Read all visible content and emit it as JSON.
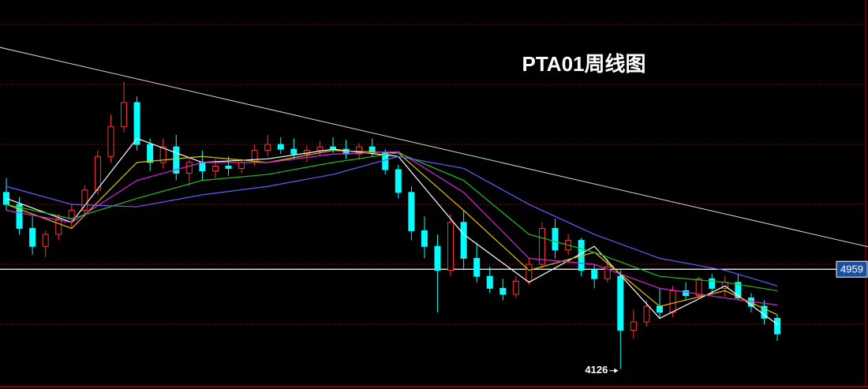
{
  "chart_data": {
    "type": "candlestick",
    "title": "PTA01周线图",
    "ylim": [
      3960,
      7205
    ],
    "gridlines": [
      4500,
      5000,
      5500,
      6000,
      6500,
      7000
    ],
    "up_color": "#ff3232",
    "down_color": "#00ffff",
    "open": [
      5600,
      5500,
      5300,
      5150,
      5250,
      5380,
      5450,
      5620,
      5900,
      6150,
      6350,
      6000,
      5850,
      5980,
      5760,
      5850,
      5780,
      5820,
      5800,
      5850,
      5950,
      6000,
      5960,
      5920,
      5950,
      5980,
      5960,
      5920,
      5980,
      5930,
      5790,
      5600,
      5280,
      5150,
      4950,
      5350,
      5050,
      4900,
      4800,
      4750,
      4860,
      5000,
      5300,
      5120,
      5200,
      4950,
      4880,
      4900,
      4450,
      4520,
      4650,
      4600,
      4780,
      4740,
      4880,
      4800,
      4850,
      4720,
      4650,
      4550
    ],
    "high": [
      5720,
      5560,
      5400,
      5280,
      5420,
      5500,
      5660,
      5950,
      6250,
      6520,
      6400,
      6050,
      6050,
      6080,
      5900,
      5950,
      5880,
      5900,
      5880,
      6000,
      6080,
      6060,
      6050,
      5990,
      6030,
      6060,
      6040,
      6010,
      6050,
      5960,
      5830,
      5650,
      5400,
      5250,
      5420,
      5450,
      5180,
      4980,
      4880,
      4900,
      5050,
      5350,
      5380,
      5250,
      5220,
      5000,
      5050,
      4950,
      4620,
      4700,
      4800,
      4820,
      4850,
      4900,
      4920,
      4900,
      4920,
      4760,
      4700,
      4580
    ],
    "low": [
      5450,
      5250,
      5080,
      5060,
      5200,
      5300,
      5400,
      5580,
      5850,
      6100,
      5950,
      5780,
      5800,
      5700,
      5650,
      5700,
      5720,
      5740,
      5760,
      5820,
      5900,
      5920,
      5880,
      5850,
      5900,
      5930,
      5880,
      5870,
      5900,
      5750,
      5550,
      5200,
      5050,
      4600,
      4900,
      4950,
      4850,
      4760,
      4700,
      4720,
      4830,
      4950,
      5050,
      5080,
      4900,
      4800,
      4850,
      4126,
      4380,
      4480,
      4550,
      4560,
      4700,
      4720,
      4750,
      4730,
      4700,
      4600,
      4500,
      4360
    ],
    "close": [
      5500,
      5300,
      5150,
      5250,
      5380,
      5450,
      5620,
      5900,
      6150,
      6350,
      6000,
      5850,
      5980,
      5760,
      5850,
      5780,
      5820,
      5800,
      5850,
      5950,
      6000,
      5960,
      5920,
      5950,
      5980,
      5960,
      5920,
      5980,
      5930,
      5790,
      5600,
      5280,
      5150,
      4950,
      5350,
      5050,
      4900,
      4800,
      4750,
      4860,
      5000,
      5300,
      5120,
      5200,
      4950,
      4880,
      4980,
      4450,
      4520,
      4650,
      4600,
      4780,
      4740,
      4880,
      4800,
      4850,
      4720,
      4650,
      4550,
      4420
    ],
    "ma_x": [
      0,
      5,
      10,
      15,
      20,
      25,
      30,
      35,
      40,
      45,
      50,
      55,
      59
    ],
    "series": [
      {
        "color": "#ffffff",
        "values": [
          5550,
          5350,
          6050,
          5850,
          5880,
          5960,
          5900,
          5250,
          4850,
          5150,
          4550,
          4820,
          4500
        ]
      },
      {
        "color": "#e0c000",
        "values": [
          5500,
          5300,
          5850,
          5900,
          5850,
          5950,
          5930,
          5450,
          4950,
          5100,
          4650,
          4780,
          4580
        ]
      },
      {
        "color": "#e020e0",
        "values": [
          5450,
          5350,
          5700,
          5850,
          5850,
          5920,
          5940,
          5600,
          5050,
          5000,
          4800,
          4720,
          4660
        ]
      },
      {
        "color": "#20c020",
        "values": [
          5500,
          5380,
          5550,
          5700,
          5750,
          5850,
          5930,
          5700,
          5250,
          5100,
          4900,
          4850,
          4780
        ]
      },
      {
        "color": "#6060ff",
        "values": [
          5650,
          5500,
          5480,
          5580,
          5650,
          5750,
          5900,
          5800,
          5500,
          5250,
          5050,
          4950,
          4820
        ]
      }
    ],
    "trendline": {
      "x": [
        -0.5,
        66
      ],
      "values": [
        6810,
        5145
      ]
    },
    "price_line": {
      "value": 4959,
      "label": "4959"
    },
    "low_annotation": {
      "label": "4126",
      "index": 47
    }
  }
}
